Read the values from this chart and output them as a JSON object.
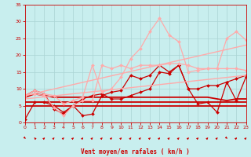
{
  "xlabel": "Vent moyen/en rafales ( km/h )",
  "xlim": [
    0,
    23
  ],
  "ylim": [
    0,
    35
  ],
  "xticks": [
    0,
    1,
    2,
    3,
    4,
    5,
    6,
    7,
    8,
    9,
    10,
    11,
    12,
    13,
    14,
    15,
    16,
    17,
    18,
    19,
    20,
    21,
    22,
    23
  ],
  "yticks": [
    0,
    5,
    10,
    15,
    20,
    25,
    30,
    35
  ],
  "bg_color": "#c8eeee",
  "grid_color": "#aad4d4",
  "label_color": "#cc0000",
  "series": [
    {
      "x": [
        0,
        1,
        2,
        3,
        4,
        5,
        6,
        7,
        8,
        9,
        10,
        11,
        12,
        13,
        14,
        15,
        16,
        17,
        18,
        19,
        20,
        21,
        22,
        23
      ],
      "y": [
        1,
        6,
        6,
        5,
        3,
        5,
        2,
        2.5,
        8,
        9,
        9.5,
        14,
        13,
        14,
        17,
        15,
        17,
        10,
        10,
        11,
        11,
        12,
        13,
        14
      ],
      "color": "#cc0000",
      "lw": 0.9,
      "marker": "D",
      "ms": 2.0
    },
    {
      "x": [
        0,
        1,
        2,
        3,
        4,
        5,
        6,
        7,
        8,
        9,
        10,
        11,
        12,
        13,
        14,
        15,
        16,
        17,
        18,
        19,
        20,
        21,
        22,
        23
      ],
      "y": [
        8,
        9.5,
        8.5,
        4,
        2.5,
        5,
        7,
        8,
        8.5,
        7,
        7,
        8,
        9,
        10,
        15,
        14.5,
        17,
        10,
        5.5,
        6,
        3,
        12,
        6.5,
        13.5
      ],
      "color": "#cc0000",
      "lw": 0.9,
      "marker": "D",
      "ms": 2.0
    },
    {
      "x": [
        0,
        1,
        2,
        3,
        4,
        5,
        6,
        7,
        8,
        9,
        10,
        11,
        12,
        13,
        14,
        15,
        16,
        17,
        18,
        19,
        20,
        21,
        22,
        23
      ],
      "y": [
        7.5,
        8.5,
        8.0,
        7.5,
        7.5,
        7.5,
        7.5,
        7.5,
        7.5,
        7.5,
        7.5,
        7.5,
        7.5,
        7.5,
        7.5,
        7.5,
        7.5,
        7.5,
        7.5,
        7.5,
        7.0,
        6.5,
        7.0,
        7.0
      ],
      "color": "#cc0000",
      "lw": 1.3,
      "marker": null,
      "ms": 0
    },
    {
      "x": [
        0,
        23
      ],
      "y": [
        5,
        5
      ],
      "color": "#cc0000",
      "lw": 1.3,
      "marker": null,
      "ms": 0
    },
    {
      "x": [
        0,
        23
      ],
      "y": [
        6,
        6
      ],
      "color": "#cc0000",
      "lw": 1.3,
      "marker": null,
      "ms": 0
    },
    {
      "x": [
        0,
        1,
        2,
        3,
        4,
        5,
        6,
        7,
        8,
        9,
        10,
        11,
        12,
        13,
        14,
        15,
        16,
        17,
        18,
        19,
        20,
        21,
        22,
        23
      ],
      "y": [
        8,
        9.5,
        8.5,
        8,
        5.5,
        6.5,
        7.5,
        17,
        9,
        10,
        13.5,
        19,
        22,
        27,
        31,
        26,
        24,
        15,
        15.5,
        16,
        16,
        25,
        27,
        24.5
      ],
      "color": "#ffaaaa",
      "lw": 0.9,
      "marker": "D",
      "ms": 2.0
    },
    {
      "x": [
        0,
        1,
        2,
        3,
        4,
        5,
        6,
        7,
        8,
        9,
        10,
        11,
        12,
        13,
        14,
        15,
        16,
        17,
        18,
        19,
        20,
        21,
        22,
        23
      ],
      "y": [
        8,
        8.5,
        8.0,
        4.5,
        2,
        5,
        6.5,
        6.5,
        17,
        16,
        17,
        16,
        17,
        17,
        17,
        17.5,
        17.5,
        17,
        16,
        16,
        16,
        16,
        16,
        15.5
      ],
      "color": "#ffaaaa",
      "lw": 0.9,
      "marker": "D",
      "ms": 2.0
    },
    {
      "x": [
        0,
        23
      ],
      "y": [
        8,
        23
      ],
      "color": "#ffaaaa",
      "lw": 1.0,
      "marker": null,
      "ms": 0
    },
    {
      "x": [
        0,
        23
      ],
      "y": [
        7,
        14
      ],
      "color": "#ffaaaa",
      "lw": 1.0,
      "marker": null,
      "ms": 0
    }
  ],
  "wind_arrows_x": [
    0,
    1,
    2,
    3,
    4,
    5,
    6,
    7,
    8,
    9,
    10,
    11,
    12,
    13,
    14,
    15,
    16,
    17,
    18,
    19,
    20,
    21,
    22,
    23
  ],
  "wind_dirs": [
    45,
    225,
    135,
    135,
    135,
    135,
    135,
    135,
    135,
    135,
    135,
    135,
    135,
    135,
    135,
    135,
    135,
    135,
    135,
    135,
    135,
    45,
    135,
    135
  ]
}
